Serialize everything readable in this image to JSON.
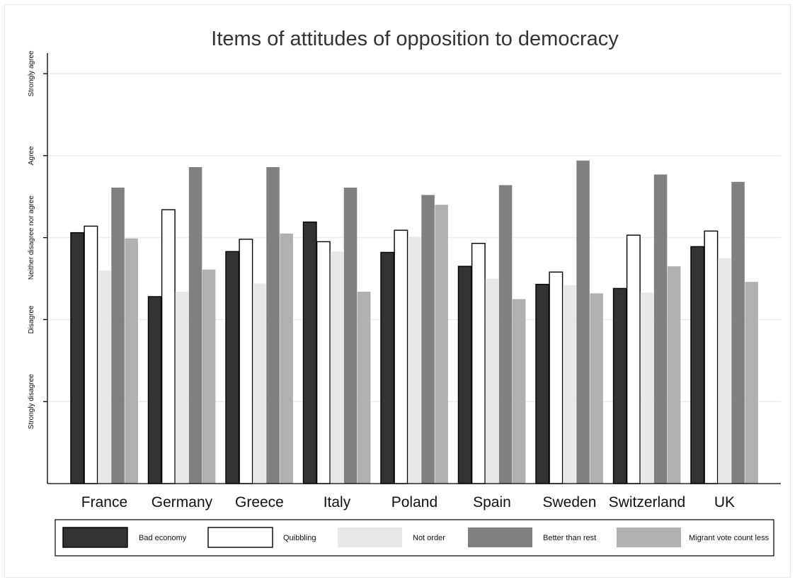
{
  "chart_data": {
    "type": "bar",
    "title": "Items of attitudes of opposition to democracy",
    "xlabel": "",
    "ylabel": "",
    "categories": [
      "France",
      "Germany",
      "Greece",
      "Italy",
      "Poland",
      "Spain",
      "Sweden",
      "Switzerland",
      "UK"
    ],
    "y_tick_labels": [
      {
        "value": 1,
        "label": "Strongly disagree"
      },
      {
        "value": 2,
        "label": "Disagree"
      },
      {
        "value": 3,
        "label": "Neither disagree nor agree"
      },
      {
        "value": 4,
        "label": "Agree"
      },
      {
        "value": 5,
        "label": "Strongly agree"
      }
    ],
    "ylim": [
      0,
      5.3
    ],
    "grid": true,
    "legend_position": "bottom",
    "series": [
      {
        "name": "Bad economy",
        "color": "#333333",
        "outline": "#000000",
        "values": [
          3.06,
          2.28,
          2.83,
          3.19,
          2.82,
          2.65,
          2.43,
          2.38,
          2.89
        ]
      },
      {
        "name": "Quibbling",
        "color": "#ffffff",
        "outline": "#000000",
        "values": [
          3.14,
          3.34,
          2.98,
          2.95,
          3.09,
          2.93,
          2.58,
          3.03,
          3.08
        ]
      },
      {
        "name": "Not order",
        "color": "#e8e8e8",
        "outline": null,
        "values": [
          2.6,
          2.34,
          2.44,
          2.83,
          3.01,
          2.5,
          2.42,
          2.33,
          2.75
        ]
      },
      {
        "name": "Better than rest",
        "color": "#808080",
        "outline": null,
        "values": [
          3.61,
          3.86,
          3.86,
          3.61,
          3.52,
          3.64,
          3.94,
          3.77,
          3.68
        ]
      },
      {
        "name": "Migrant vote count less",
        "color": "#b0b0b0",
        "outline": null,
        "values": [
          2.99,
          2.61,
          3.05,
          2.34,
          3.4,
          2.25,
          2.32,
          2.65,
          2.46
        ]
      }
    ]
  }
}
